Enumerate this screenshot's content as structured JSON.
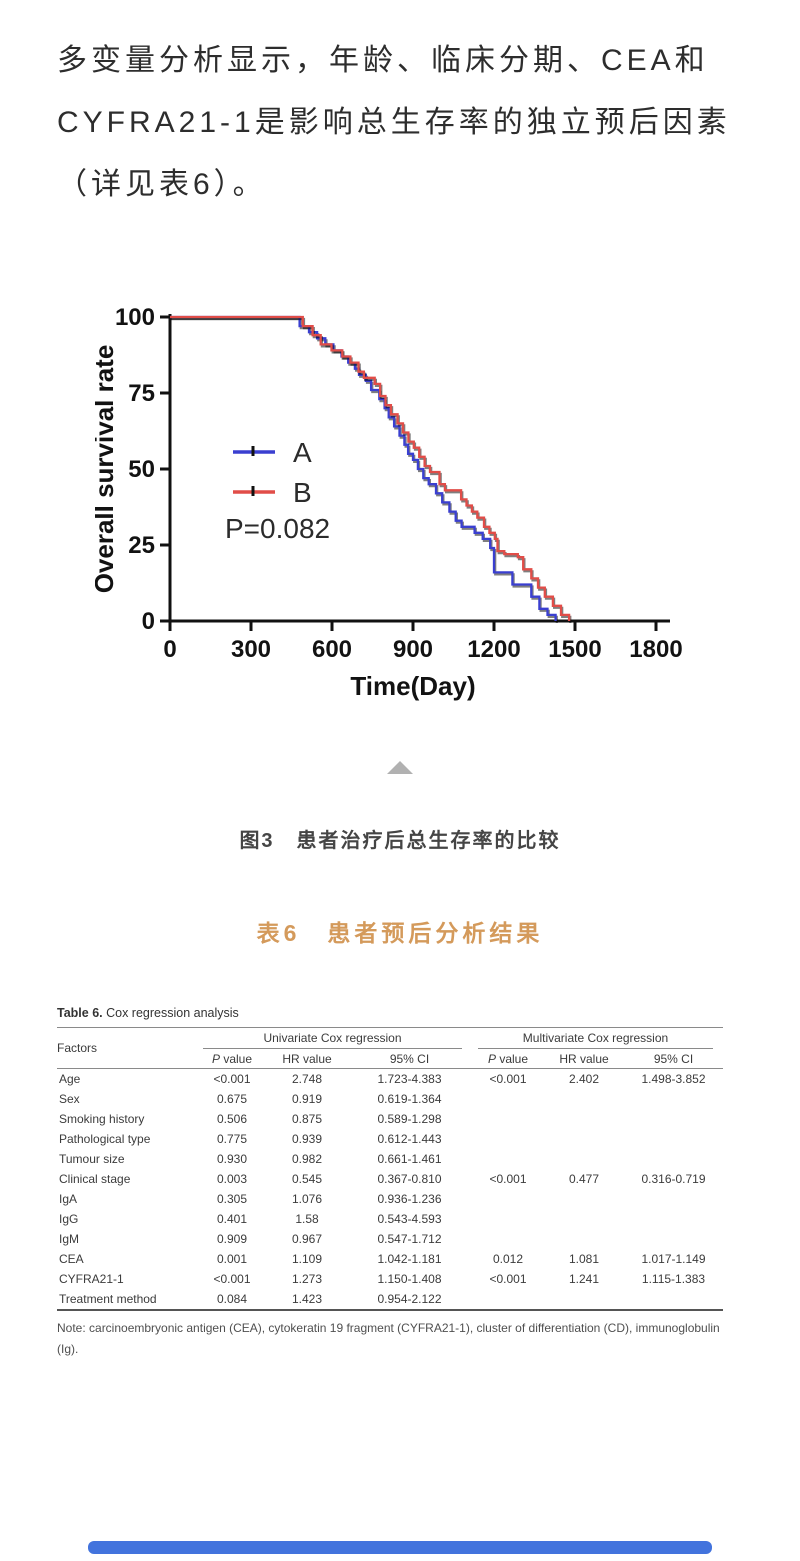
{
  "paragraph": {
    "lines": [
      "多变量分析显示，年龄、临床分期、CEA和",
      "CYFRA21-1是影响总生存率的独立预后因素",
      "（详见表6）。"
    ]
  },
  "figure": {
    "caption": "图3　患者治疗后总生存率的比较"
  },
  "table_section": {
    "title_cn": "表6　患者预后分析结果",
    "accent_color": "#d49a5b"
  },
  "chart_data": {
    "type": "line",
    "subtype": "kaplan-meier-step",
    "title": "",
    "xlabel": "Time(Day)",
    "ylabel": "Overall survival rate",
    "xlim": [
      0,
      1800
    ],
    "ylim": [
      0,
      100
    ],
    "x_ticks": [
      0,
      300,
      600,
      900,
      1200,
      1500,
      1800
    ],
    "y_ticks": [
      0,
      25,
      50,
      75,
      100
    ],
    "p_label": "P=0.082",
    "legend_position": "inside-left",
    "grid": false,
    "series": [
      {
        "name": "A",
        "color": "#3a3fd0",
        "points": [
          [
            0,
            100
          ],
          [
            480,
            100
          ],
          [
            480,
            97
          ],
          [
            515,
            97
          ],
          [
            515,
            95
          ],
          [
            545,
            95
          ],
          [
            545,
            93
          ],
          [
            575,
            93
          ],
          [
            575,
            91
          ],
          [
            605,
            91
          ],
          [
            605,
            89
          ],
          [
            635,
            89
          ],
          [
            635,
            87
          ],
          [
            660,
            87
          ],
          [
            660,
            85
          ],
          [
            685,
            85
          ],
          [
            685,
            83
          ],
          [
            700,
            83
          ],
          [
            700,
            81
          ],
          [
            725,
            81
          ],
          [
            725,
            79
          ],
          [
            745,
            79
          ],
          [
            745,
            76
          ],
          [
            775,
            76
          ],
          [
            775,
            73
          ],
          [
            795,
            73
          ],
          [
            795,
            70
          ],
          [
            810,
            70
          ],
          [
            810,
            67
          ],
          [
            830,
            67
          ],
          [
            830,
            64
          ],
          [
            850,
            64
          ],
          [
            850,
            61
          ],
          [
            868,
            61
          ],
          [
            868,
            58
          ],
          [
            882,
            58
          ],
          [
            882,
            55
          ],
          [
            900,
            55
          ],
          [
            900,
            53
          ],
          [
            918,
            53
          ],
          [
            918,
            50
          ],
          [
            938,
            50
          ],
          [
            938,
            47
          ],
          [
            958,
            47
          ],
          [
            958,
            45
          ],
          [
            985,
            45
          ],
          [
            985,
            42
          ],
          [
            1008,
            42
          ],
          [
            1008,
            39
          ],
          [
            1035,
            39
          ],
          [
            1035,
            36
          ],
          [
            1058,
            36
          ],
          [
            1058,
            33
          ],
          [
            1080,
            33
          ],
          [
            1080,
            31
          ],
          [
            1128,
            31
          ],
          [
            1128,
            29
          ],
          [
            1158,
            29
          ],
          [
            1158,
            27
          ],
          [
            1186,
            27
          ],
          [
            1186,
            24
          ],
          [
            1200,
            24
          ],
          [
            1200,
            16
          ],
          [
            1268,
            16
          ],
          [
            1268,
            12
          ],
          [
            1338,
            12
          ],
          [
            1338,
            8
          ],
          [
            1368,
            8
          ],
          [
            1368,
            4
          ],
          [
            1398,
            4
          ],
          [
            1398,
            2
          ],
          [
            1428,
            2
          ],
          [
            1428,
            0
          ]
        ]
      },
      {
        "name": "B",
        "color": "#e14d48",
        "points": [
          [
            0,
            100
          ],
          [
            492,
            100
          ],
          [
            492,
            97
          ],
          [
            528,
            97
          ],
          [
            528,
            94
          ],
          [
            558,
            94
          ],
          [
            558,
            91
          ],
          [
            598,
            91
          ],
          [
            598,
            89
          ],
          [
            638,
            89
          ],
          [
            638,
            87
          ],
          [
            668,
            87
          ],
          [
            668,
            85
          ],
          [
            698,
            85
          ],
          [
            698,
            82
          ],
          [
            718,
            82
          ],
          [
            718,
            80
          ],
          [
            758,
            80
          ],
          [
            758,
            78
          ],
          [
            778,
            78
          ],
          [
            778,
            74
          ],
          [
            798,
            74
          ],
          [
            798,
            71
          ],
          [
            818,
            71
          ],
          [
            818,
            68
          ],
          [
            843,
            68
          ],
          [
            843,
            65
          ],
          [
            863,
            65
          ],
          [
            863,
            62
          ],
          [
            883,
            62
          ],
          [
            883,
            59
          ],
          [
            903,
            59
          ],
          [
            903,
            57
          ],
          [
            923,
            57
          ],
          [
            923,
            54
          ],
          [
            943,
            54
          ],
          [
            943,
            51
          ],
          [
            963,
            51
          ],
          [
            963,
            49
          ],
          [
            998,
            49
          ],
          [
            998,
            45
          ],
          [
            1018,
            45
          ],
          [
            1018,
            43
          ],
          [
            1078,
            43
          ],
          [
            1078,
            40
          ],
          [
            1098,
            40
          ],
          [
            1098,
            38
          ],
          [
            1118,
            38
          ],
          [
            1118,
            36
          ],
          [
            1138,
            36
          ],
          [
            1138,
            34
          ],
          [
            1163,
            34
          ],
          [
            1163,
            31
          ],
          [
            1183,
            31
          ],
          [
            1183,
            29
          ],
          [
            1203,
            29
          ],
          [
            1203,
            27
          ],
          [
            1213,
            27
          ],
          [
            1213,
            23
          ],
          [
            1238,
            23
          ],
          [
            1238,
            22
          ],
          [
            1288,
            22
          ],
          [
            1288,
            21
          ],
          [
            1308,
            21
          ],
          [
            1308,
            17
          ],
          [
            1338,
            17
          ],
          [
            1338,
            14
          ],
          [
            1363,
            14
          ],
          [
            1363,
            11
          ],
          [
            1388,
            11
          ],
          [
            1388,
            8
          ],
          [
            1418,
            8
          ],
          [
            1418,
            5
          ],
          [
            1448,
            5
          ],
          [
            1448,
            2
          ],
          [
            1478,
            2
          ],
          [
            1478,
            0
          ]
        ]
      }
    ]
  },
  "table": {
    "caption_bold": "Table 6.",
    "caption_rest": " Cox regression analysis",
    "col_factors": "Factors",
    "groups": [
      "Univariate Cox regression",
      "Multivariate Cox regression"
    ],
    "subheaders": [
      "P value",
      "HR value",
      "95% CI",
      "P value",
      "HR value",
      "95% CI"
    ],
    "rows": [
      [
        "Age",
        "<0.001",
        "2.748",
        "1.723-4.383",
        "<0.001",
        "2.402",
        "1.498-3.852"
      ],
      [
        "Sex",
        "0.675",
        "0.919",
        "0.619-1.364",
        "",
        "",
        ""
      ],
      [
        "Smoking history",
        "0.506",
        "0.875",
        "0.589-1.298",
        "",
        "",
        ""
      ],
      [
        "Pathological type",
        "0.775",
        "0.939",
        "0.612-1.443",
        "",
        "",
        ""
      ],
      [
        "Tumour size",
        "0.930",
        "0.982",
        "0.661-1.461",
        "",
        "",
        ""
      ],
      [
        "Clinical stage",
        "0.003",
        "0.545",
        "0.367-0.810",
        "<0.001",
        "0.477",
        "0.316-0.719"
      ],
      [
        "IgA",
        "0.305",
        "1.076",
        "0.936-1.236",
        "",
        "",
        ""
      ],
      [
        "IgG",
        "0.401",
        "1.58",
        "0.543-4.593",
        "",
        "",
        ""
      ],
      [
        "IgM",
        "0.909",
        "0.967",
        "0.547-1.712",
        "",
        "",
        ""
      ],
      [
        "CEA",
        "0.001",
        "1.109",
        "1.042-1.181",
        "0.012",
        "1.081",
        "1.017-1.149"
      ],
      [
        "CYFRA21-1",
        "<0.001",
        "1.273",
        "1.150-1.408",
        "<0.001",
        "1.241",
        "1.115-1.383"
      ],
      [
        "Treatment method",
        "0.084",
        "1.423",
        "0.954-2.122",
        "",
        "",
        ""
      ]
    ],
    "note": "Note: carcinoembryonic antigen (CEA), cytokeratin 19 fragment (CYFRA21-1), cluster of differentiation (CD), immunoglobulin (Ig)."
  },
  "footer": {
    "bar_color": "#4273dd"
  }
}
